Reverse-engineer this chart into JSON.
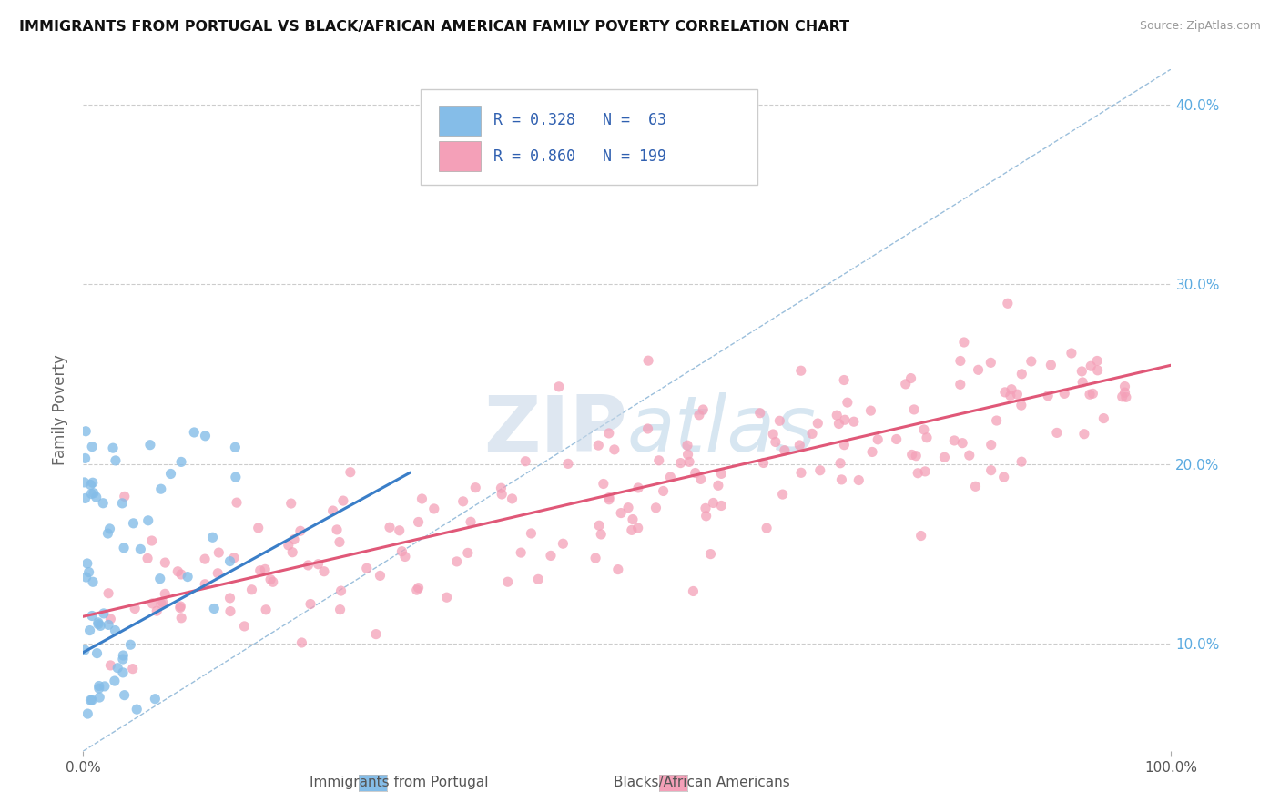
{
  "title": "IMMIGRANTS FROM PORTUGAL VS BLACK/AFRICAN AMERICAN FAMILY POVERTY CORRELATION CHART",
  "source": "Source: ZipAtlas.com",
  "ylabel": "Family Poverty",
  "xlim": [
    0,
    1.0
  ],
  "ylim": [
    0.04,
    0.42
  ],
  "ytick_vals": [
    0.1,
    0.2,
    0.3,
    0.4
  ],
  "ytick_labels": [
    "10.0%",
    "20.0%",
    "30.0%",
    "40.0%"
  ],
  "xtick_vals": [
    0.0,
    1.0
  ],
  "xtick_labels": [
    "0.0%",
    "100.0%"
  ],
  "color_blue_scatter": "#85bde8",
  "color_pink_scatter": "#f4a0b8",
  "color_blue_line": "#3a7ec8",
  "color_pink_line": "#e05878",
  "color_dashed": "#90b8d8",
  "color_yaxis": "#5aaae0",
  "watermark_color": "#c8d8e8",
  "legend_label_r1": "R = 0.328   N =  63",
  "legend_label_r2": "R = 0.860   N = 199",
  "bottom_label1": "Immigrants from Portugal",
  "bottom_label2": "Blacks/African Americans",
  "blue_seed": 42,
  "pink_seed": 17,
  "n_blue": 63,
  "n_pink": 199,
  "pink_trend_x0": 0.0,
  "pink_trend_x1": 1.0,
  "pink_trend_y0": 0.115,
  "pink_trend_y1": 0.255,
  "blue_trend_x0": 0.0,
  "blue_trend_x1": 0.3,
  "blue_trend_y0": 0.095,
  "blue_trend_y1": 0.195
}
